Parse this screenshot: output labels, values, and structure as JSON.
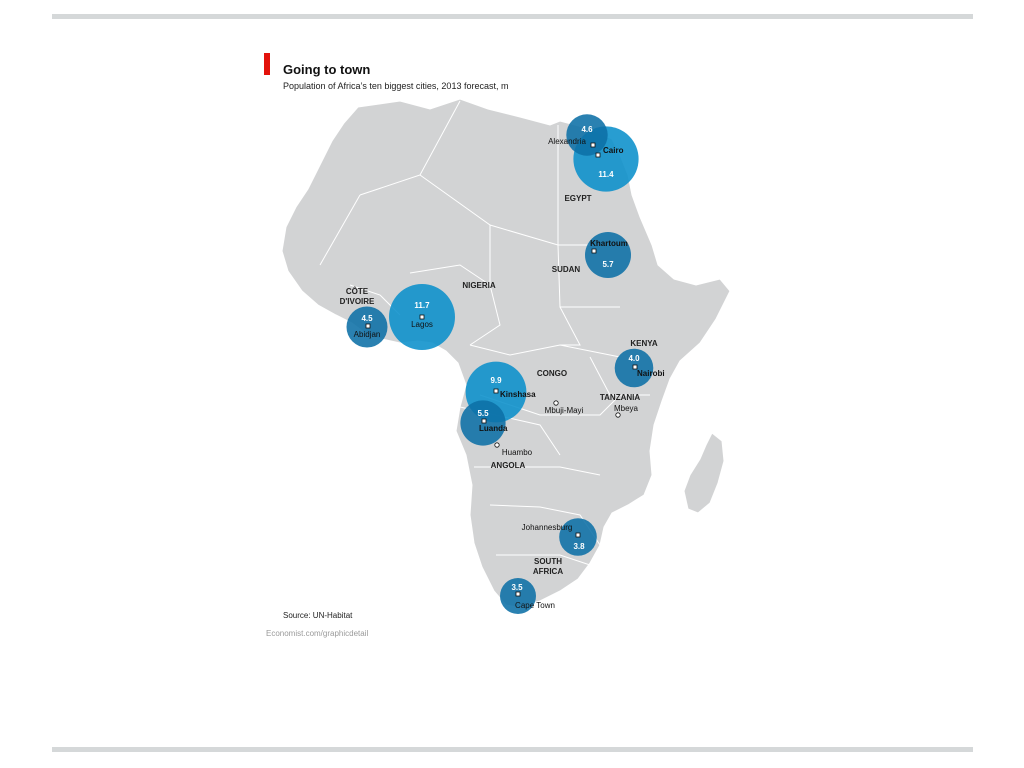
{
  "title": "Going to town",
  "subtitle": "Population of Africa’s ten biggest cities, 2013 forecast, m",
  "source": "Source: UN-Habitat",
  "credit": "Economist.com/graphicdetail",
  "colors": {
    "accent": "#e3120b",
    "land": "#d2d3d4",
    "border": "#ffffff",
    "bubble": "#0a8fcb",
    "bubble_dark": "#0d6fa6",
    "rule": "#d5d8d9"
  },
  "countries": [
    {
      "name": "EGYPT"
    },
    {
      "name": "SUDAN"
    },
    {
      "name": "NIGERIA"
    },
    {
      "name": "CÔTE",
      "line2": "D'IVOIRE"
    },
    {
      "name": "CONGO"
    },
    {
      "name": "KENYA"
    },
    {
      "name": "TANZANIA"
    },
    {
      "name": "ANGOLA"
    },
    {
      "name": "SOUTH",
      "line2": "AFRICA"
    }
  ],
  "cities": [
    {
      "name": "Lagos",
      "value": 11.7,
      "value_label": "11.7"
    },
    {
      "name": "Cairo",
      "value": 11.4,
      "value_label": "11.4"
    },
    {
      "name": "Kinshasa",
      "value": 9.9,
      "value_label": "9.9"
    },
    {
      "name": "Khartoum",
      "value": 5.7,
      "value_label": "5.7"
    },
    {
      "name": "Luanda",
      "value": 5.5,
      "value_label": "5.5"
    },
    {
      "name": "Alexandria",
      "value": 4.6,
      "value_label": "4.6"
    },
    {
      "name": "Abidjan",
      "value": 4.5,
      "value_label": "4.5"
    },
    {
      "name": "Nairobi",
      "value": 4.0,
      "value_label": "4.0"
    },
    {
      "name": "Johannesburg",
      "value": 3.8,
      "value_label": "3.8"
    },
    {
      "name": "Cape Town",
      "value": 3.5,
      "value_label": "3.5"
    }
  ],
  "other_cities": [
    {
      "name": "Mbuji-Mayi"
    },
    {
      "name": "Mbeya"
    },
    {
      "name": "Huambo"
    }
  ]
}
